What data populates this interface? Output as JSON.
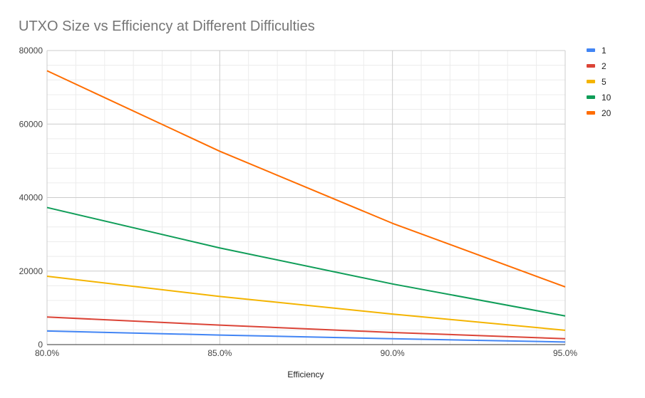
{
  "chart_data": {
    "type": "line",
    "title": "UTXO Size vs Efficiency at Different Difficulties",
    "xlabel": "Efficiency",
    "ylabel": "",
    "xlim": [
      0.8,
      0.95
    ],
    "ylim": [
      0,
      80000
    ],
    "x": [
      0.8,
      0.85,
      0.9,
      0.95
    ],
    "x_tick_labels": [
      "80.0%",
      "85.0%",
      "90.0%",
      "95.0%"
    ],
    "y_ticks": [
      0,
      20000,
      40000,
      60000,
      80000
    ],
    "y_tick_labels": [
      "0",
      "20000",
      "40000",
      "60000",
      "80000"
    ],
    "grid": true,
    "legend_position": "right",
    "series": [
      {
        "name": "1",
        "color": "#4285f4",
        "values": [
          3700,
          2600,
          1600,
          700
        ]
      },
      {
        "name": "2",
        "color": "#db4437",
        "values": [
          7500,
          5300,
          3300,
          1600
        ]
      },
      {
        "name": "5",
        "color": "#f4b400",
        "values": [
          18600,
          13100,
          8300,
          3900
        ]
      },
      {
        "name": "10",
        "color": "#0f9d58",
        "values": [
          37300,
          26300,
          16500,
          7800
        ]
      },
      {
        "name": "20",
        "color": "#ff6d00",
        "values": [
          74500,
          52600,
          33000,
          15700
        ]
      }
    ]
  }
}
